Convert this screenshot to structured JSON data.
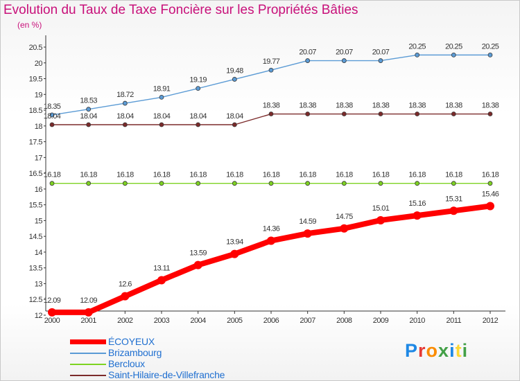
{
  "title": "Evolution du Taux de Taxe Foncière sur les Propriétés Bâties",
  "unit_label": "(en %)",
  "logo": {
    "letters": [
      "P",
      "r",
      "o",
      "x",
      "i",
      "t",
      "i"
    ],
    "colors": [
      "#1e88e5",
      "#e53935",
      "#fb8c00",
      "#43a047",
      "#1e88e5",
      "#fdd835",
      "#43a047"
    ]
  },
  "chart_data": {
    "type": "line",
    "x": [
      "2000",
      "2001",
      "2002",
      "2003",
      "2004",
      "2005",
      "2006",
      "2007",
      "2008",
      "2009",
      "2010",
      "2011",
      "2012"
    ],
    "ylim": [
      12,
      20.5
    ],
    "yticks": [
      "12",
      "12.5",
      "13",
      "13.5",
      "14",
      "14.5",
      "15",
      "15.5",
      "16",
      "16.5",
      "17",
      "17.5",
      "18",
      "18.5",
      "19",
      "19.5",
      "20",
      "20.5"
    ],
    "grid": false,
    "legend_position": "bottom",
    "series": [
      {
        "name": "ÉCOYEUX",
        "color": "#ff0000",
        "values": [
          12.09,
          12.09,
          12.6,
          13.11,
          13.59,
          13.94,
          14.36,
          14.59,
          14.75,
          15.01,
          15.16,
          15.31,
          15.46
        ],
        "labels": [
          "12.09",
          "12.09",
          "12.6",
          "13.11",
          "13.59",
          "13.94",
          "14.36",
          "14.59",
          "14.75",
          "15.01",
          "15.16",
          "15.31",
          "15.46"
        ]
      },
      {
        "name": "Brizambourg",
        "color": "#5b9bd5",
        "values": [
          18.35,
          18.53,
          18.72,
          18.91,
          19.19,
          19.48,
          19.77,
          20.07,
          20.07,
          20.07,
          20.25,
          20.25,
          20.25
        ],
        "labels": [
          "18.35",
          "18.53",
          "18.72",
          "18.91",
          "19.19",
          "19.48",
          "19.77",
          "20.07",
          "20.07",
          "20.07",
          "20.25",
          "20.25",
          "20.25"
        ]
      },
      {
        "name": "Bercloux",
        "color": "#7ed321",
        "values": [
          16.18,
          16.18,
          16.18,
          16.18,
          16.18,
          16.18,
          16.18,
          16.18,
          16.18,
          16.18,
          16.18,
          16.18,
          16.18
        ],
        "labels": [
          "16.18",
          "16.18",
          "16.18",
          "16.18",
          "16.18",
          "16.18",
          "16.18",
          "16.18",
          "16.18",
          "16.18",
          "16.18",
          "16.18",
          "16.18"
        ]
      },
      {
        "name": "Saint-Hilaire-de-Villefranche",
        "color": "#7b2a2a",
        "values": [
          18.04,
          18.04,
          18.04,
          18.04,
          18.04,
          18.04,
          18.38,
          18.38,
          18.38,
          18.38,
          18.38,
          18.38,
          18.38
        ],
        "labels": [
          "18.04",
          "18.04",
          "18.04",
          "18.04",
          "18.04",
          "18.04",
          "18.38",
          "18.38",
          "18.38",
          "18.38",
          "18.38",
          "18.38",
          "18.38"
        ]
      }
    ]
  }
}
